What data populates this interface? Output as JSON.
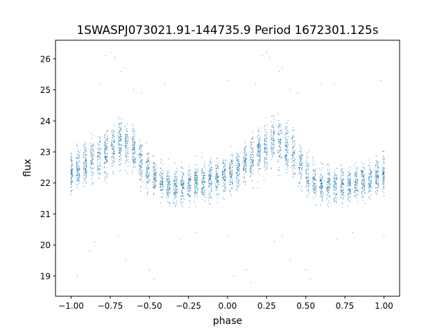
{
  "chart_data": {
    "type": "scatter",
    "title": "1SWASPJ073021.91-144735.9 Period 1672301.125s",
    "xlabel": "phase",
    "ylabel": "flux",
    "xlim": [
      -1.1,
      1.1
    ],
    "ylim": [
      18.35,
      26.6
    ],
    "x_ticks": [
      -1.0,
      -0.75,
      -0.5,
      -0.25,
      0.0,
      0.25,
      0.5,
      0.75,
      1.0
    ],
    "x_tick_labels": [
      "−1.00",
      "−0.75",
      "−0.50",
      "−0.25",
      "0.00",
      "0.25",
      "0.50",
      "0.75",
      "1.00"
    ],
    "y_ticks": [
      19,
      20,
      21,
      22,
      23,
      24,
      25,
      26
    ],
    "y_tick_labels": [
      "19",
      "20",
      "21",
      "22",
      "23",
      "24",
      "25",
      "26"
    ],
    "grid": false,
    "legend": "none",
    "marker_color": "#1f77b4",
    "series": [
      {
        "profile_phase": [
          -1.0,
          -0.95,
          -0.9,
          -0.85,
          -0.8,
          -0.75,
          -0.7,
          -0.65,
          -0.6,
          -0.55,
          -0.5,
          -0.45,
          -0.4,
          -0.35,
          -0.3,
          -0.25,
          -0.2,
          -0.15,
          -0.1,
          -0.05,
          0.0,
          0.05,
          0.1,
          0.15,
          0.2,
          0.25,
          0.3,
          0.35,
          0.4,
          0.45,
          0.5,
          0.55,
          0.6,
          0.65,
          0.7,
          0.75,
          0.8,
          0.85,
          0.9,
          0.95,
          1.0
        ],
        "profile_flux": [
          22.3,
          22.5,
          22.6,
          22.8,
          22.9,
          23.1,
          23.3,
          23.3,
          23.1,
          22.7,
          22.3,
          22.1,
          21.95,
          21.9,
          21.9,
          21.95,
          22.0,
          22.05,
          22.1,
          22.15,
          22.25,
          22.4,
          22.6,
          22.8,
          23.0,
          23.15,
          23.3,
          23.3,
          23.1,
          22.7,
          22.3,
          22.1,
          21.95,
          21.9,
          21.9,
          21.95,
          22.0,
          22.05,
          22.1,
          22.2,
          22.3
        ],
        "profile_spread": [
          0.55,
          0.55,
          0.6,
          0.6,
          0.65,
          0.7,
          0.75,
          0.75,
          0.7,
          0.65,
          0.6,
          0.55,
          0.5,
          0.5,
          0.5,
          0.5,
          0.5,
          0.55,
          0.55,
          0.55,
          0.55,
          0.55,
          0.6,
          0.6,
          0.65,
          0.7,
          0.75,
          0.75,
          0.7,
          0.65,
          0.6,
          0.55,
          0.5,
          0.5,
          0.5,
          0.5,
          0.5,
          0.55,
          0.55,
          0.55,
          0.55
        ],
        "n_points": 4200
      }
    ],
    "outliers": [
      [
        -0.78,
        26.1
      ],
      [
        -0.74,
        26.2
      ],
      [
        -0.72,
        26.05
      ],
      [
        -0.68,
        25.6
      ],
      [
        -0.66,
        25.7
      ],
      [
        -0.82,
        25.2
      ],
      [
        -0.6,
        25.0
      ],
      [
        -0.55,
        24.9
      ],
      [
        -0.4,
        25.2
      ],
      [
        0.0,
        25.3
      ],
      [
        0.22,
        26.1
      ],
      [
        0.25,
        26.2
      ],
      [
        0.27,
        26.05
      ],
      [
        0.33,
        25.6
      ],
      [
        0.35,
        25.7
      ],
      [
        0.18,
        25.2
      ],
      [
        0.4,
        25.0
      ],
      [
        0.45,
        24.9
      ],
      [
        0.6,
        25.2
      ],
      [
        0.68,
        25.2
      ],
      [
        0.98,
        25.3
      ],
      [
        -0.88,
        19.8
      ],
      [
        -0.85,
        20.1
      ],
      [
        -0.7,
        20.3
      ],
      [
        -0.65,
        19.5
      ],
      [
        -0.5,
        19.2
      ],
      [
        -0.47,
        18.9
      ],
      [
        -0.3,
        20.2
      ],
      [
        -0.2,
        20.4
      ],
      [
        0.0,
        20.3
      ],
      [
        0.12,
        19.2
      ],
      [
        0.15,
        18.8
      ],
      [
        0.3,
        20.1
      ],
      [
        0.35,
        20.3
      ],
      [
        0.4,
        19.5
      ],
      [
        0.5,
        19.2
      ],
      [
        0.53,
        18.9
      ],
      [
        0.7,
        20.2
      ],
      [
        0.8,
        20.4
      ],
      [
        1.0,
        20.3
      ],
      [
        -0.96,
        19.0
      ],
      [
        0.04,
        19.0
      ]
    ]
  }
}
